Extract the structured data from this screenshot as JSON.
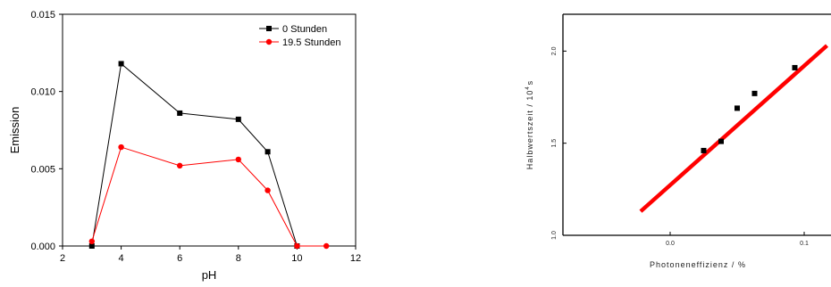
{
  "chart_data": [
    {
      "type": "line",
      "title": "",
      "xlabel": "pH",
      "ylabel": "Emission",
      "xlim": [
        2,
        12
      ],
      "ylim": [
        0,
        0.015
      ],
      "x_ticks": [
        2,
        4,
        6,
        8,
        10,
        12
      ],
      "x_tick_labels": [
        "2",
        "4",
        "6",
        "8",
        "10",
        "12"
      ],
      "y_ticks": [
        0,
        0.005,
        0.01,
        0.015
      ],
      "y_tick_labels": [
        "0.000",
        "0.005",
        "0.010",
        "0.015"
      ],
      "legend_position": "top-right",
      "grid": false,
      "series": [
        {
          "name": "0 Stunden",
          "color": "#000000",
          "marker": "square",
          "x": [
            3,
            4,
            6,
            8,
            9,
            10
          ],
          "y": [
            0.0,
            0.0118,
            0.0086,
            0.0082,
            0.0061,
            0.0
          ]
        },
        {
          "name": "19.5 Stunden",
          "color": "#ff0000",
          "marker": "circle",
          "x": [
            3,
            4,
            6,
            8,
            9,
            10,
            11
          ],
          "y": [
            0.0003,
            0.0064,
            0.0052,
            0.0056,
            0.0036,
            0.0,
            0.0
          ]
        }
      ]
    },
    {
      "type": "scatter",
      "title": "",
      "xlabel": "Photoneneffizienz / %",
      "ylabel": "Halbwertszeit / 10⁴ s",
      "ylabel_main": "Halbwertszeit / 10",
      "ylabel_sup": "4",
      "ylabel_tail": "s",
      "xlim": [
        -0.08,
        0.12
      ],
      "ylim": [
        1.0,
        2.2
      ],
      "x_ticks": [
        0.0,
        0.1
      ],
      "x_tick_labels": [
        "0.0",
        "0.1"
      ],
      "y_ticks": [
        1.0,
        1.5,
        2.0
      ],
      "y_tick_labels": [
        "1.0",
        "1.5",
        "2.0"
      ],
      "grid": false,
      "points": {
        "color": "#000000",
        "marker": "square",
        "x": [
          0.025,
          0.038,
          0.05,
          0.063,
          0.093
        ],
        "y": [
          1.46,
          1.51,
          1.69,
          1.77,
          1.91
        ]
      },
      "fit_line": {
        "color": "#ff0000",
        "x": [
          -0.022,
          0.117
        ],
        "y": [
          1.13,
          2.03
        ]
      }
    }
  ]
}
